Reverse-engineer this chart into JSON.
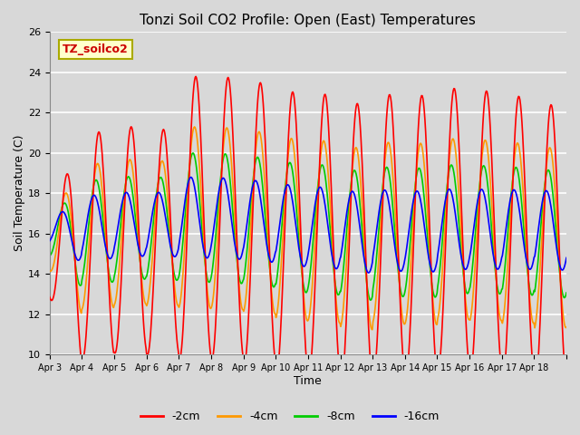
{
  "title": "Tonzi Soil CO2 Profile: Open (East) Temperatures",
  "xlabel": "Time",
  "ylabel": "Soil Temperature (C)",
  "ylim": [
    10,
    26
  ],
  "yticks": [
    10,
    12,
    14,
    16,
    18,
    20,
    22,
    24,
    26
  ],
  "background_color": "#d8d8d8",
  "plot_bg_color": "#d8d8d8",
  "legend_label": "TZ_soilco2",
  "legend_box_color": "#ffffcc",
  "legend_text_color": "#cc0000",
  "series_labels": [
    "-2cm",
    "-4cm",
    "-8cm",
    "-16cm"
  ],
  "series_colors": [
    "#ff0000",
    "#ff9900",
    "#00cc00",
    "#0000ff"
  ],
  "line_width": 1.2,
  "x_tick_labels": [
    "Apr 3",
    "Apr 4",
    "Apr 5",
    "Apr 6",
    "Apr 7",
    "Apr 8",
    "Apr 9",
    "Apr 10",
    "Apr 11",
    "Apr 12",
    "Apr 13",
    "Apr 14",
    "Apr 15",
    "Apr 16",
    "Apr 17",
    "Apr 18"
  ],
  "n_days": 16,
  "title_fontsize": 11,
  "axis_label_fontsize": 9,
  "tick_fontsize": 8,
  "legend_fontsize": 9
}
